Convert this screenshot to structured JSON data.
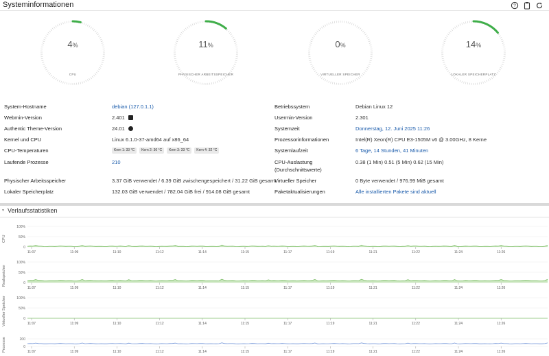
{
  "header": {
    "title": "Systeminformationen",
    "icons": [
      "help-icon",
      "clipboard-icon",
      "refresh-icon"
    ]
  },
  "gauges": [
    {
      "value": "4",
      "unit": "%",
      "label": "CPU",
      "fraction": 0.04
    },
    {
      "value": "11",
      "unit": "%",
      "label": "PHYSISCHER ARBEITSSPEICHER",
      "fraction": 0.11
    },
    {
      "value": "0",
      "unit": "%",
      "label": "VIRTUELLER SPEICHER",
      "fraction": 0.0
    },
    {
      "value": "14",
      "unit": "%",
      "label": "LOKALER SPEICHERPLATZ",
      "fraction": 0.14
    }
  ],
  "left_info": {
    "hostname": {
      "label": "System-Hostname",
      "value": "debian (127.0.1.1)"
    },
    "webmin": {
      "label": "Webmin-Version",
      "value": "2.401"
    },
    "theme": {
      "label": "Authentic Theme-Version",
      "value": "24.01"
    },
    "kernel": {
      "label": "Kernel und CPU",
      "value": "Linux 6.1.0-37-amd64 auf x86_64"
    },
    "cputemp": {
      "label": "CPU-Temperaturen",
      "cores": [
        "Kern 1: 33 °C",
        "Kern 2: 36 °C",
        "Kern 3: 33 °C",
        "Kern 4: 32 °C"
      ]
    },
    "processes": {
      "label": "Laufende Prozesse",
      "value": "210"
    },
    "memory": {
      "label": "Physischer Arbeitsspeicher",
      "value": "3.37 GiB verwendet / 6.39 GiB zwischengespeichert / 31.22 GiB gesamt"
    },
    "disk": {
      "label": "Lokaler Speicherplatz",
      "value": "132.03 GiB verwendet / 782.04 GiB frei / 914.08 GiB gesamt"
    }
  },
  "right_info": {
    "os": {
      "label": "Betriebssystem",
      "value": "Debian Linux 12"
    },
    "usermin": {
      "label": "Usermin-Version",
      "value": "2.301"
    },
    "time": {
      "label": "Systemzeit",
      "value": "Donnerstag, 12. Juni 2025 11:26"
    },
    "cpuinfo": {
      "label": "Prozessorinformationen",
      "value": "Intel(R) Xeon(R) CPU E3-1505M v6 @ 3.00GHz, 8 Kerne"
    },
    "uptime": {
      "label": "Systemlaufzeit",
      "value": "6 Tage, 14 Stunden, 41 Minuten"
    },
    "load": {
      "label": "CPU-Auslastung",
      "label2": "(Durchschnittswerte)",
      "value": "0.38 (1 Min) 0.51 (5 Min) 0.62 (15 Min)"
    },
    "swap": {
      "label": "Virtueller Speicher",
      "value": "0 Byte verwendet / 976.99 MiB gesamt"
    },
    "updates": {
      "label": "Paketaktualisierungen",
      "value": "Alle installierten Pakete sind aktuell"
    }
  },
  "history": {
    "title": "Verlaufsstatistiken",
    "time_ticks": [
      "11:07",
      "11:09",
      "11:10",
      "11:12",
      "11:14",
      "11:15",
      "11:17",
      "11:19",
      "11:21",
      "11:22",
      "11:24",
      "11:26"
    ],
    "charts": [
      {
        "name": "CPU",
        "yticks": [
          "100%",
          "50%",
          "0"
        ],
        "color": "#7fbf6a",
        "fill": "#c9e6bd",
        "level": 0.03
      },
      {
        "name": "Realspeicher",
        "yticks": [
          "100%",
          "50%",
          "0"
        ],
        "color": "#7fbf6a",
        "fill": "#c9e6bd",
        "level": 0.1
      },
      {
        "name": "Virtueller Speicher",
        "yticks": [
          "100%",
          "50%",
          "0"
        ],
        "color": "#7fbf6a",
        "fill": "#c9e6bd",
        "level": 0.0
      },
      {
        "name": "Prozesse",
        "yticks": [
          "200",
          "0"
        ],
        "color": "#6b8fd6",
        "fill": "#ffffff",
        "level": 0.21
      }
    ]
  }
}
